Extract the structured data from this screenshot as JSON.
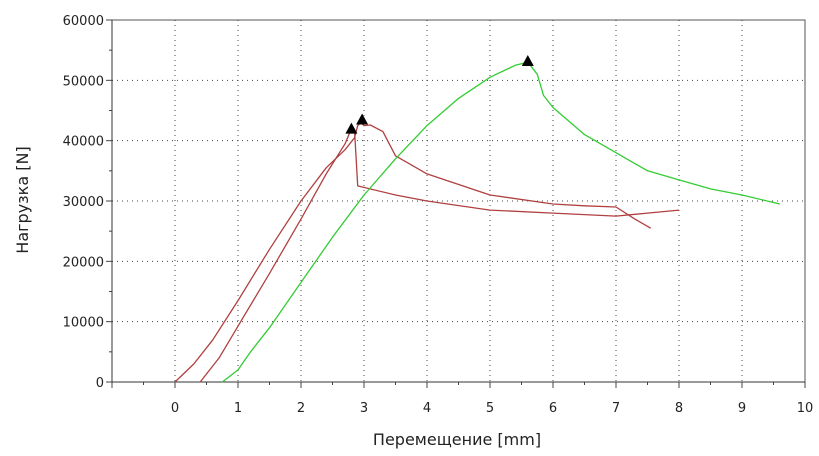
{
  "chart_data": {
    "type": "line",
    "title": "",
    "xlabel": "Перемещение [mm]",
    "ylabel": "Нагрузка [N]",
    "xlim": [
      -1,
      10
    ],
    "ylim": [
      0,
      60000
    ],
    "x_ticks": [
      "0",
      "1",
      "2",
      "3",
      "4",
      "5",
      "6",
      "7",
      "8",
      "9",
      "10"
    ],
    "y_ticks": [
      "0",
      "10000",
      "20000",
      "30000",
      "40000",
      "50000",
      "60000"
    ],
    "grid": true,
    "grid_style": "dotted",
    "legend": "none",
    "series": [
      {
        "color": "#b04040",
        "x": [
          0.0,
          0.3,
          0.6,
          1.0,
          1.5,
          2.0,
          2.4,
          2.7,
          2.85,
          2.9,
          2.95,
          3.0,
          3.1,
          3.3,
          3.5,
          4.0,
          5.0,
          6.0,
          6.5,
          7.0,
          7.3,
          7.55
        ],
        "y": [
          0,
          3000,
          7000,
          13500,
          22000,
          30000,
          35500,
          38500,
          40500,
          42500,
          43000,
          42500,
          42600,
          41500,
          37500,
          34500,
          31000,
          29500,
          29200,
          29000,
          27000,
          25500
        ]
      },
      {
        "color": "#b04040",
        "x": [
          0.4,
          0.7,
          1.1,
          1.5,
          2.0,
          2.4,
          2.7,
          2.8,
          2.85,
          2.9,
          3.5,
          4.0,
          5.0,
          6.0,
          7.0,
          7.5,
          8.0
        ],
        "y": [
          0,
          4000,
          11000,
          18000,
          27000,
          34500,
          39500,
          42000,
          41500,
          32500,
          31000,
          30000,
          28500,
          28000,
          27500,
          28000,
          28500
        ]
      },
      {
        "color": "#33cc33",
        "x": [
          0.75,
          1.0,
          1.2,
          1.5,
          2.0,
          2.5,
          3.0,
          3.5,
          4.0,
          4.5,
          5.0,
          5.4,
          5.6,
          5.75,
          5.85,
          6.0,
          6.5,
          7.0,
          7.5,
          8.0,
          8.5,
          9.0,
          9.6
        ],
        "y": [
          0,
          2000,
          5000,
          9000,
          16500,
          24000,
          31000,
          37000,
          42500,
          47000,
          50500,
          52500,
          53000,
          51000,
          47500,
          45500,
          41000,
          38000,
          35000,
          33500,
          32000,
          31000,
          29500
        ]
      }
    ],
    "annotations": [
      {
        "type": "triangle-marker",
        "x": 2.8,
        "y": 42000
      },
      {
        "type": "triangle-marker",
        "x": 2.97,
        "y": 43500
      },
      {
        "type": "triangle-marker",
        "x": 5.6,
        "y": 53200
      }
    ]
  }
}
